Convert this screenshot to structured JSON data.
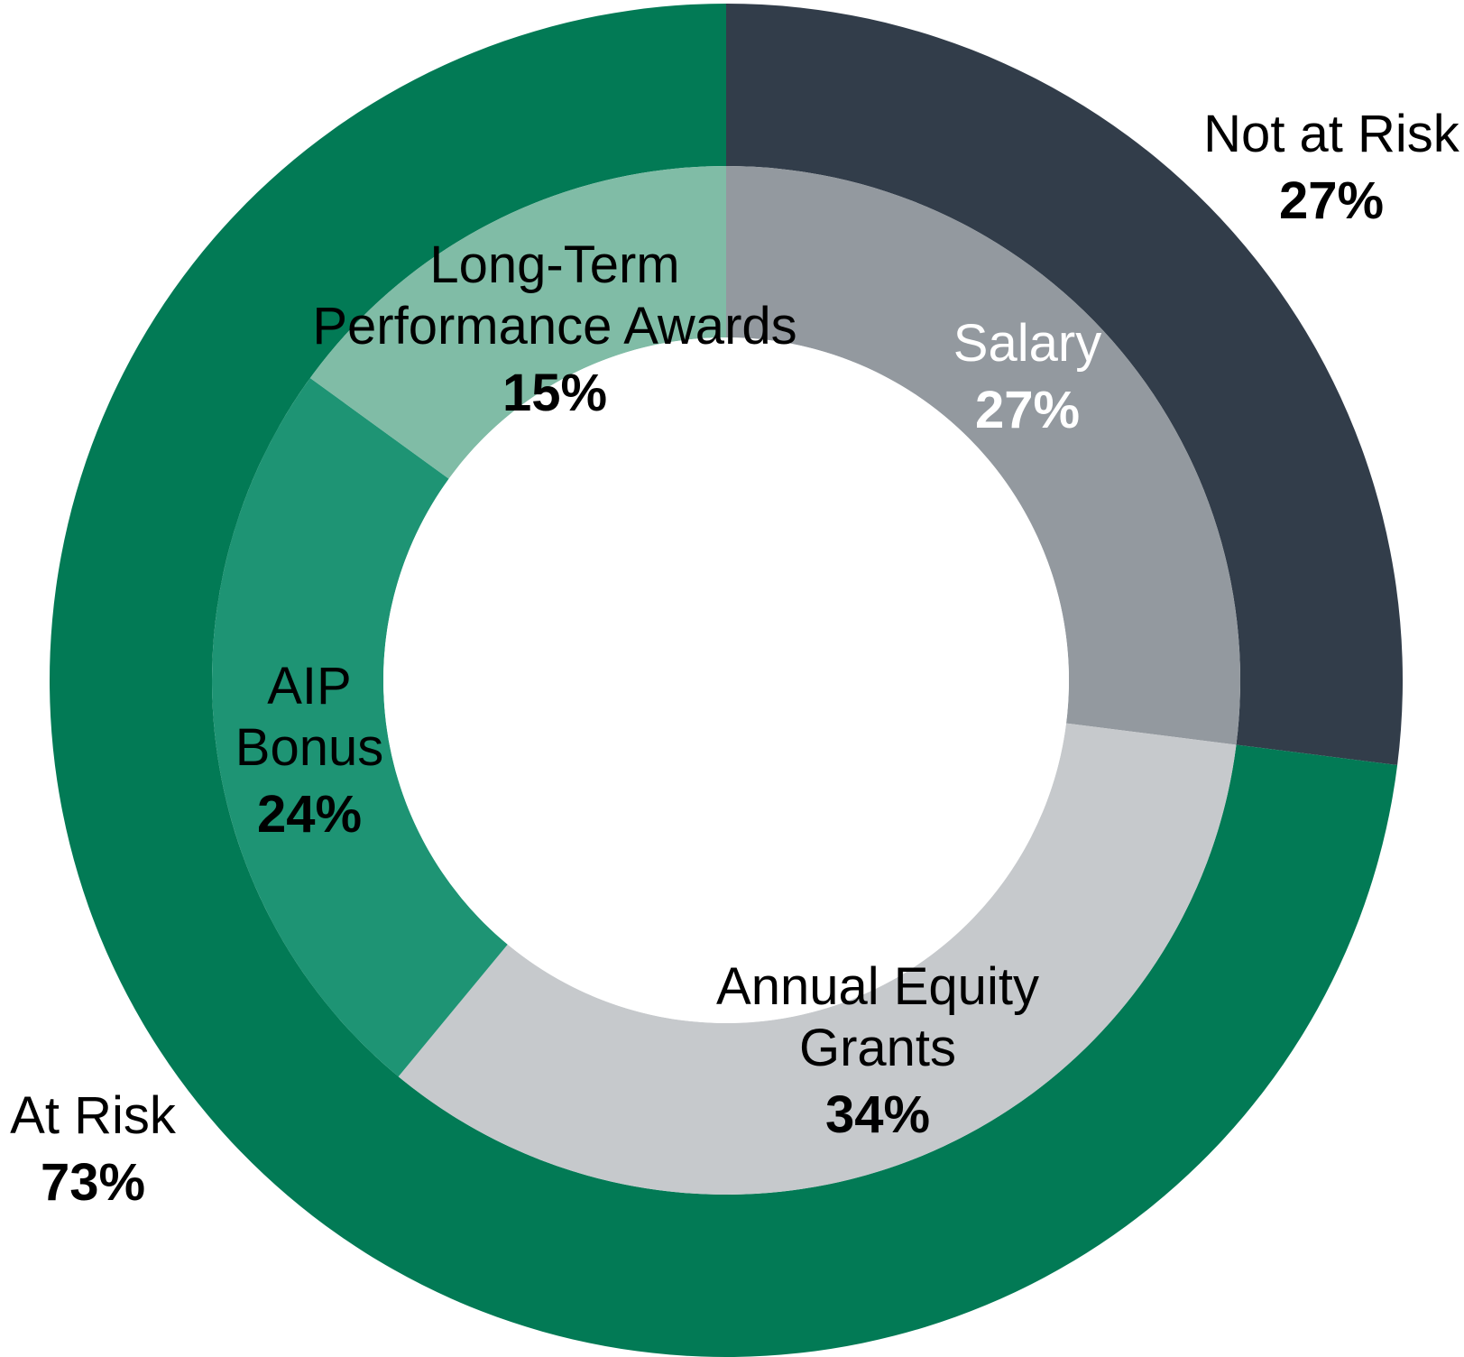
{
  "chart_data": {
    "type": "donut",
    "rings": [
      {
        "ring": "outer",
        "slices": [
          {
            "label": "Not at Risk",
            "value": 27,
            "value_label": "27%",
            "color": "#323d4a",
            "text_color": "#000000"
          },
          {
            "label": "At Risk",
            "value": 73,
            "value_label": "73%",
            "color": "#027a55",
            "text_color": "#000000"
          }
        ]
      },
      {
        "ring": "inner",
        "slices": [
          {
            "label": "Salary",
            "value": 27,
            "value_label": "27%",
            "color": "#93999f",
            "text_color": "#ffffff"
          },
          {
            "label": "Annual Equity Grants",
            "value": 34,
            "value_label": "34%",
            "color": "#c6c9cc",
            "text_color": "#000000"
          },
          {
            "label": "AIP Bonus",
            "value": 24,
            "value_label": "24%",
            "color": "#1e9474",
            "text_color": "#000000"
          },
          {
            "label": "Long-Term Performance Awards",
            "value": 15,
            "value_label": "15%",
            "color": "#80bca6",
            "text_color": "#000000"
          }
        ]
      }
    ],
    "labels": {
      "not_at_risk": {
        "lines": [
          "Not at Risk"
        ],
        "pct": "27%"
      },
      "at_risk": {
        "lines": [
          "At Risk"
        ],
        "pct": "73%"
      },
      "salary": {
        "lines": [
          "Salary"
        ],
        "pct": "27%"
      },
      "annual_equity": {
        "lines": [
          "Annual Equity",
          "Grants"
        ],
        "pct": "34%"
      },
      "aip_bonus": {
        "lines": [
          "AIP",
          "Bonus"
        ],
        "pct": "24%"
      },
      "ltpa": {
        "lines": [
          "Long-Term",
          "Performance Awards"
        ],
        "pct": "15%"
      }
    },
    "start_angle": "12 o'clock",
    "direction": "clockwise"
  }
}
